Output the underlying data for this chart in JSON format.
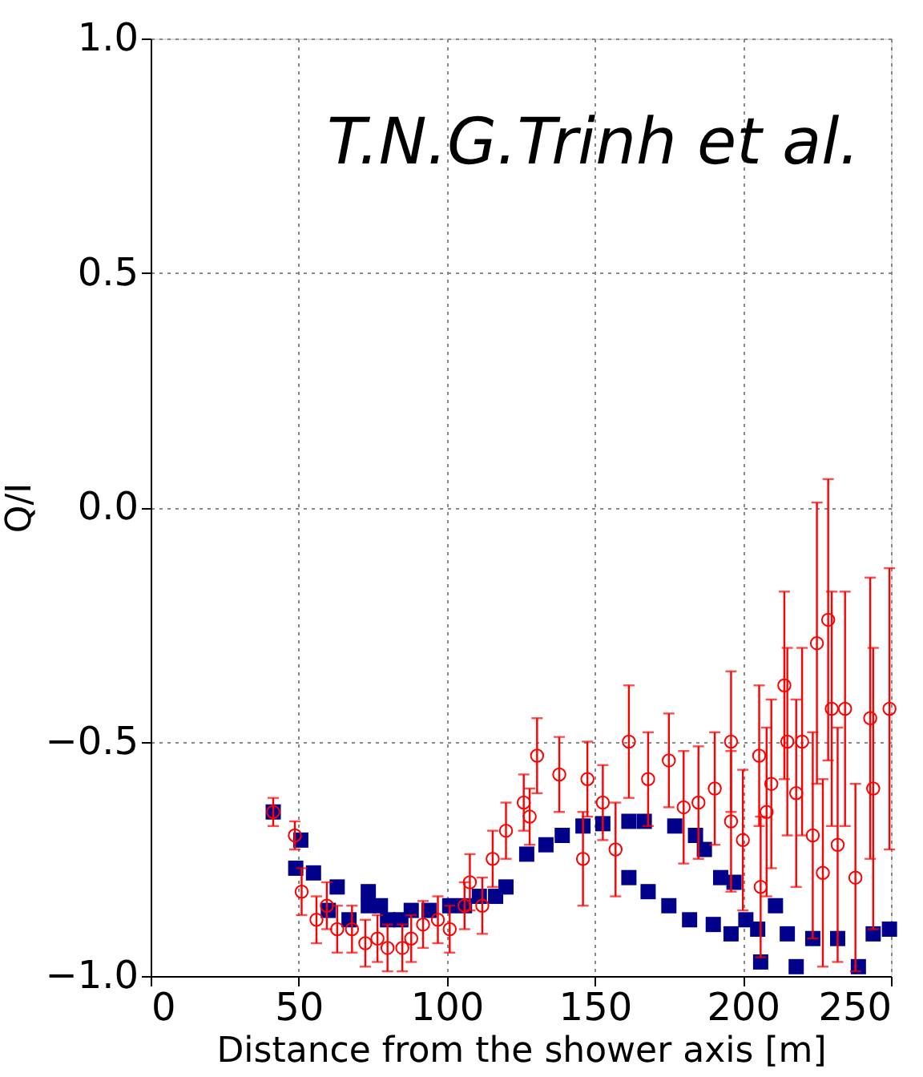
{
  "chart_data": {
    "type": "scatter",
    "xlabel": "Distance from the shower axis [m]",
    "ylabel": "Q/I",
    "annotations": [
      "T.N.G.Trinh et al."
    ],
    "xlim": [
      0,
      250
    ],
    "xticks": [
      0,
      50,
      100,
      150,
      200,
      250
    ],
    "ylim": [
      -1.0,
      1.0
    ],
    "yticks": [
      {
        "value": -1.0,
        "label": "−1.0"
      },
      {
        "value": -0.5,
        "label": "−0.5"
      },
      {
        "value": 0.0,
        "label": "0.0"
      },
      {
        "value": 0.5,
        "label": "0.5"
      },
      {
        "value": 1.0,
        "label": "1.0"
      }
    ],
    "grid": true,
    "series": [
      {
        "color": "#00008b",
        "marker": "square",
        "x": [
          41.4,
          49,
          50.7,
          55,
          60,
          63,
          67,
          73.5,
          73.5,
          77.6,
          80,
          84.5,
          88,
          94,
          101,
          106,
          111,
          116.5,
          120,
          127,
          133.5,
          139,
          146,
          152.7,
          161.5,
          166.7,
          177,
          184,
          187,
          192.5,
          197,
          161.5,
          168,
          175,
          182,
          190,
          196,
          201,
          205,
          206,
          211,
          215,
          218,
          223.6,
          232,
          239,
          244,
          249.5
        ],
        "values": [
          -0.65,
          -0.77,
          -0.71,
          -0.78,
          -0.86,
          -0.81,
          -0.88,
          -0.82,
          -0.85,
          -0.85,
          -0.88,
          -0.88,
          -0.86,
          -0.86,
          -0.85,
          -0.85,
          -0.83,
          -0.83,
          -0.81,
          -0.74,
          -0.72,
          -0.7,
          -0.68,
          -0.675,
          -0.67,
          -0.67,
          -0.68,
          -0.7,
          -0.73,
          -0.79,
          -0.8,
          -0.79,
          -0.82,
          -0.85,
          -0.88,
          -0.89,
          -0.91,
          -0.88,
          -0.9,
          -0.97,
          -0.85,
          -0.91,
          -0.98,
          -0.92,
          -0.92,
          -0.98,
          -0.91,
          -0.9
        ]
      },
      {
        "color": "#ff0000",
        "marker": "circle",
        "x": [
          41.4,
          48.7,
          51,
          56,
          59.5,
          63,
          68,
          72.5,
          76.6,
          80,
          85,
          88,
          92,
          97,
          101,
          106,
          107.8,
          112,
          115.5,
          120,
          126,
          128,
          130.5,
          138,
          146,
          147.5,
          152.7,
          157,
          161.5,
          168,
          175,
          180,
          185,
          190.5,
          196,
          196,
          200,
          205.5,
          206,
          208,
          209.6,
          214,
          215,
          218,
          220,
          223.6,
          225,
          227,
          228.8,
          230,
          232,
          234.5,
          238,
          243,
          244,
          249.5
        ],
        "values": [
          -0.65,
          -0.7,
          -0.82,
          -0.88,
          -0.85,
          -0.9,
          -0.9,
          -0.93,
          -0.92,
          -0.94,
          -0.94,
          -0.92,
          -0.89,
          -0.88,
          -0.9,
          -0.85,
          -0.8,
          -0.85,
          -0.75,
          -0.69,
          -0.63,
          -0.66,
          -0.53,
          -0.57,
          -0.75,
          -0.58,
          -0.63,
          -0.73,
          -0.5,
          -0.58,
          -0.54,
          -0.64,
          -0.63,
          -0.6,
          -0.67,
          -0.5,
          -0.71,
          -0.53,
          -0.81,
          -0.65,
          -0.59,
          -0.38,
          -0.5,
          -0.61,
          -0.5,
          -0.7,
          -0.29,
          -0.78,
          -0.24,
          -0.43,
          -0.72,
          -0.43,
          -0.79,
          -0.45,
          -0.6,
          -0.43
        ],
        "errors": [
          0.03,
          0.03,
          0.05,
          0.05,
          0.05,
          0.05,
          0.05,
          0.05,
          0.05,
          0.05,
          0.05,
          0.05,
          0.05,
          0.05,
          0.05,
          0.05,
          0.06,
          0.06,
          0.06,
          0.06,
          0.06,
          0.06,
          0.08,
          0.08,
          0.1,
          0.08,
          0.08,
          0.1,
          0.12,
          0.1,
          0.1,
          0.12,
          0.12,
          0.12,
          0.15,
          0.15,
          0.15,
          0.15,
          0.15,
          0.18,
          0.18,
          0.2,
          0.2,
          0.2,
          0.2,
          0.22,
          0.3,
          0.2,
          0.3,
          0.25,
          0.25,
          0.25,
          0.2,
          0.3,
          0.3,
          0.3
        ]
      }
    ]
  }
}
